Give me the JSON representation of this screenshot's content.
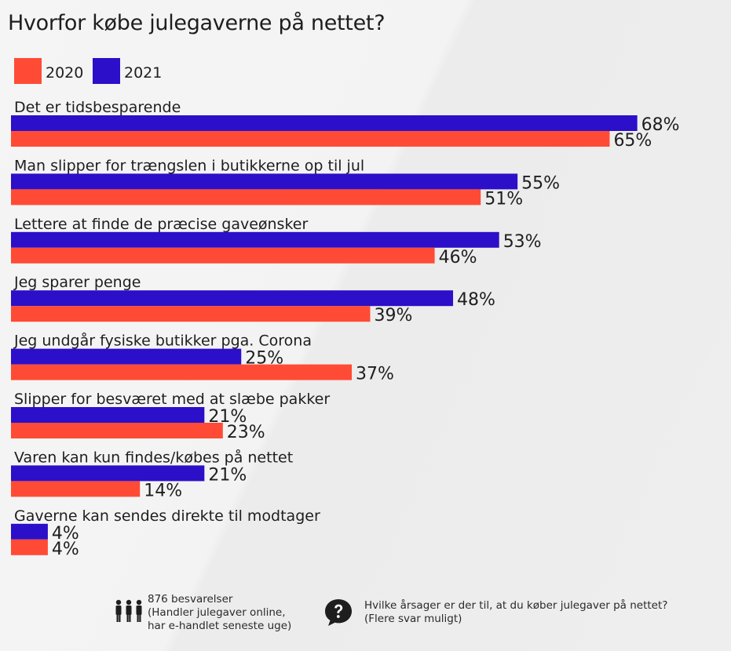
{
  "chart_data": {
    "type": "bar",
    "orientation": "horizontal",
    "title": "Hvorfor købe julegaverne på nettet?",
    "categories": [
      "Det er tidsbesparende",
      "Man slipper for trængslen i butikkerne op til jul",
      "Lettere at finde de præcise gaveønsker",
      "Jeg sparer penge",
      "Jeg undgår fysiske butikker pga. Corona",
      "Slipper for besværet med at slæbe pakker",
      "Varen kan kun findes/købes på nettet",
      "Gaverne kan sendes direkte til modtager"
    ],
    "series": [
      {
        "name": "2021",
        "color": "#2c0fc8",
        "values": [
          68,
          55,
          53,
          48,
          25,
          21,
          21,
          4
        ],
        "labels": [
          "68%",
          "55%",
          "53%",
          "48%",
          "25%",
          "21%",
          "21%",
          "4%"
        ]
      },
      {
        "name": "2020",
        "color": "#ff4b35",
        "values": [
          65,
          51,
          46,
          39,
          37,
          23,
          14,
          4
        ],
        "labels": [
          "65%",
          "51%",
          "46%",
          "39%",
          "37%",
          "23%",
          "14%",
          "4%"
        ]
      }
    ],
    "unit": "%",
    "legend": [
      {
        "label": "2020",
        "color": "#ff4b35"
      },
      {
        "label": "2021",
        "color": "#2c0fc8"
      }
    ],
    "legend_position": "top-left",
    "grid": false
  },
  "footer": {
    "respondents_lines": [
      "876 besvarelser",
      "(Handler julegaver online,",
      "har e-handlet seneste uge)"
    ],
    "question_lines": [
      "Hvilke årsager er der til, at du køber julegaver på nettet?",
      "(Flere svar muligt)"
    ],
    "icons": {
      "respondents": "people-icon",
      "question": "question-bubble-icon"
    }
  }
}
